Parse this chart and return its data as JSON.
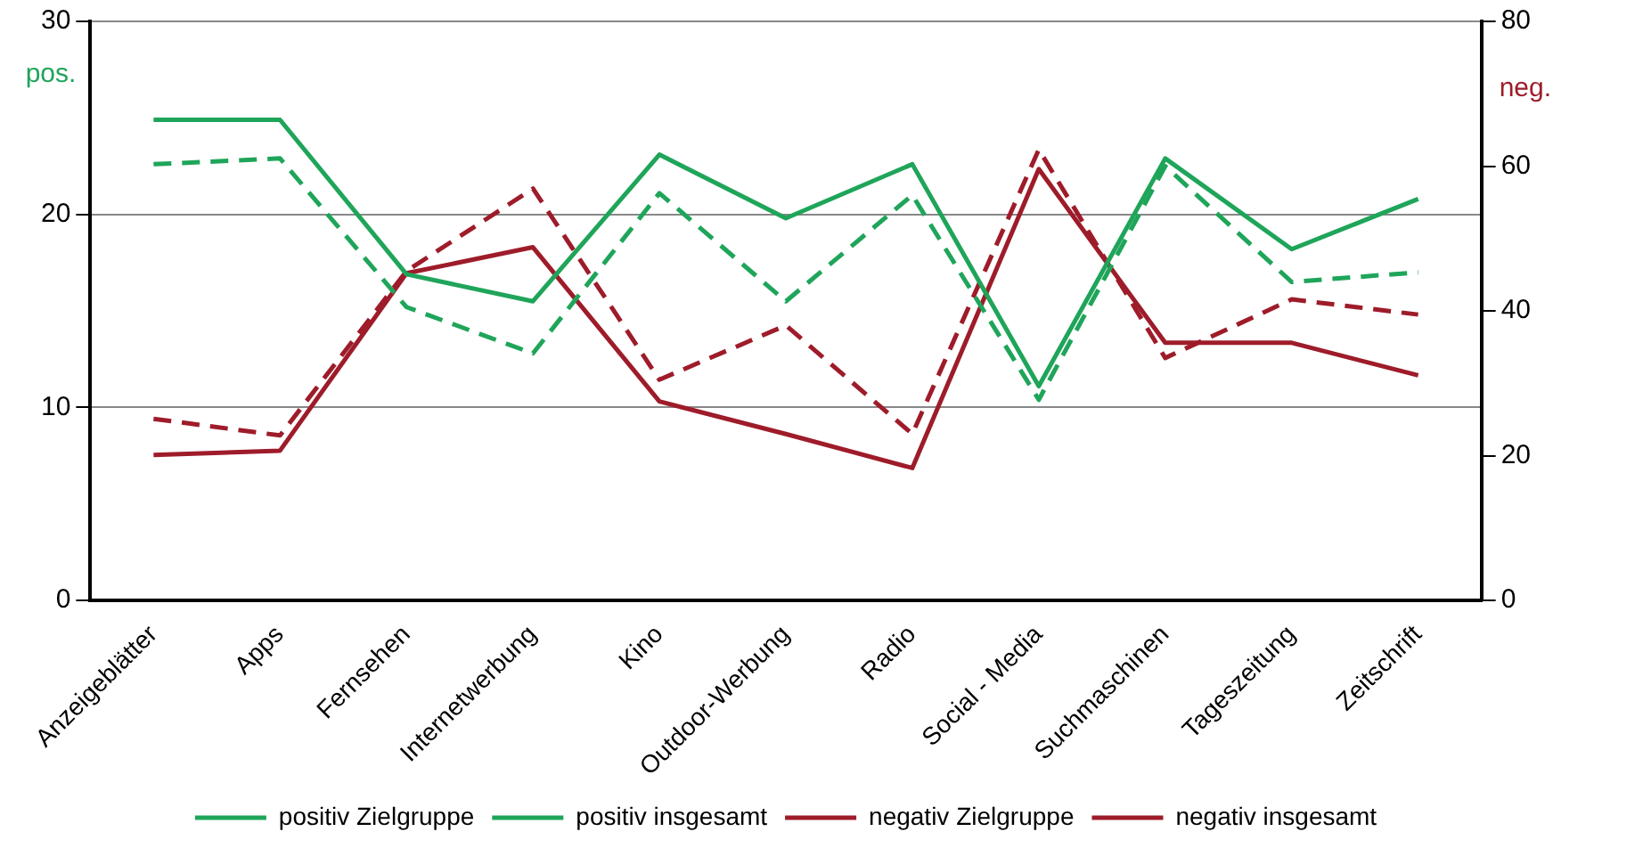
{
  "chart_data": {
    "type": "line",
    "ylabel": "pos.",
    "y2label": "neg.",
    "categories": [
      "Anzeigeblätter",
      "Apps",
      "Fernsehen",
      "Internetwerbung",
      "Kino",
      "Outdoor-Werbung",
      "Radio",
      "Social - Media",
      "Suchmaschinen",
      "Tageszeitung",
      "Zeitschrift"
    ],
    "series": [
      {
        "name": "positiv Zielgruppe",
        "color": "#1fa55a",
        "line_style": "solid",
        "values": [
          24.9,
          24.9,
          16.9,
          15.5,
          23.1,
          19.8,
          22.6,
          11.1,
          22.9,
          18.2,
          20.8
        ]
      },
      {
        "name": "positiv insgesamt",
        "color": "#1fa55a",
        "line_style": "dashed",
        "values": [
          22.6,
          22.9,
          15.2,
          12.8,
          21.1,
          15.5,
          21.0,
          10.4,
          22.5,
          16.5,
          17.0
        ]
      },
      {
        "name": "negativ Zielgruppe",
        "color": "#9e1c2a",
        "line_style": "solid",
        "axis": "y2",
        "values": [
          20.1,
          20.7,
          45.2,
          48.8,
          27.5,
          23,
          18.3,
          59.6,
          35.6,
          35.6,
          31.1
        ]
      },
      {
        "name": "negativ insgesamt",
        "color": "#9e1c2a",
        "line_style": "dashed",
        "axis": "y2",
        "values": [
          25.1,
          22.8,
          45.5,
          56.9,
          30.5,
          38,
          23,
          62.3,
          33.5,
          41.6,
          39.5
        ]
      }
    ],
    "ylim": [
      0,
      30
    ],
    "yticks": [
      0,
      10,
      20,
      30
    ],
    "y2lim": [
      0,
      80
    ],
    "y2ticks": [
      0,
      20,
      40,
      60,
      80
    ],
    "grid": "y",
    "legend": "bottom",
    "marker": "none"
  }
}
